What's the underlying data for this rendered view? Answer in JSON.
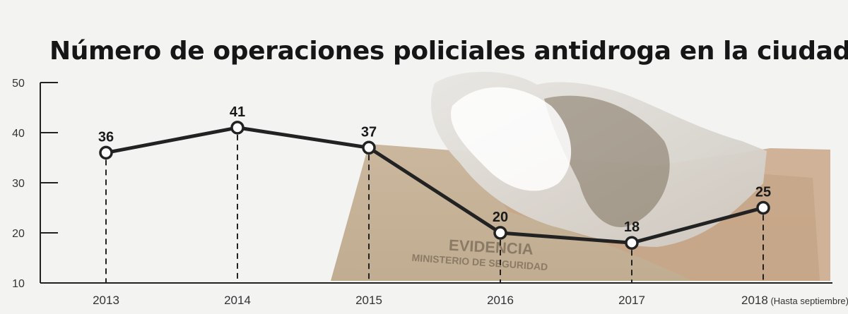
{
  "chart_data": {
    "type": "line",
    "title": "Número de operaciones policiales antidroga en la ciudad",
    "categories": [
      "2013",
      "2014",
      "2015",
      "2016",
      "2017",
      "2018"
    ],
    "category_labels": [
      {
        "year": "2013",
        "note": ""
      },
      {
        "year": "2014",
        "note": ""
      },
      {
        "year": "2015",
        "note": ""
      },
      {
        "year": "2016",
        "note": ""
      },
      {
        "year": "2017",
        "note": ""
      },
      {
        "year": "2018",
        "note": "(Hasta septiembre)"
      }
    ],
    "series": [
      {
        "values": [
          36,
          41,
          37,
          20,
          18,
          25
        ]
      }
    ],
    "data_labels": [
      "36",
      "41",
      "37",
      "20",
      "18",
      "25"
    ],
    "ylim": [
      10,
      50
    ],
    "yticks": [
      10,
      20,
      30,
      40,
      50
    ],
    "xlabel": "",
    "ylabel": "",
    "grid": false,
    "background_photo": {
      "box_text": "EVIDENCIA",
      "box_subtext": "MINISTERIO DE SEGURIDAD"
    }
  },
  "colors": {
    "line": "#222222",
    "marker_fill": "#ffffff",
    "text": "#1a1a1a",
    "background": "#f3f3f2"
  }
}
